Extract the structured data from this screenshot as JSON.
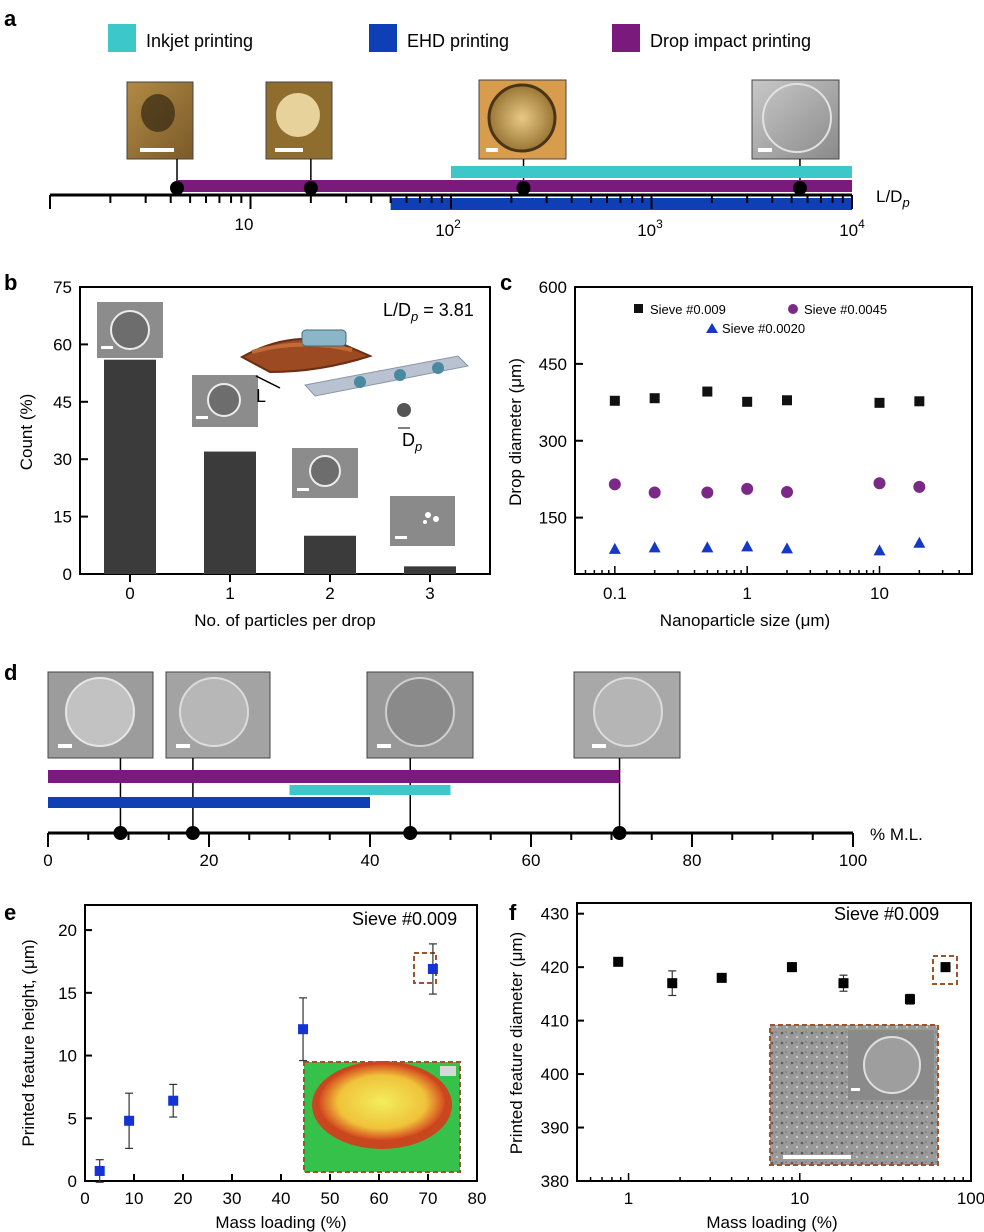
{
  "colors": {
    "inkjet": "#3cc8c8",
    "ehd": "#0f3fb4",
    "drop_impact": "#7a1a7d",
    "bar": "#3b3b3b",
    "sieve_0009": "#111111",
    "sieve_00045": "#7a2a86",
    "sieve_00020": "#1538c8",
    "panel_e_marker": "#1433d6",
    "dashed_box": "#a0522d"
  },
  "panels": {
    "a": {
      "label": "a"
    },
    "b": {
      "label": "b"
    },
    "c": {
      "label": "c"
    },
    "d": {
      "label": "d"
    },
    "e": {
      "label": "e"
    },
    "f": {
      "label": "f"
    }
  },
  "chart_data": [
    {
      "panel": "a",
      "type": "bar",
      "subtype": "range-timeline",
      "scale": "log",
      "xlim": [
        1,
        10000
      ],
      "xlabel": "L/D_p",
      "xlabel_main": "L/D",
      "xlabel_sub": "p",
      "tick_labels": [
        "10",
        "10",
        "10",
        "10"
      ],
      "tick_sup": [
        "",
        "2",
        "3",
        "4"
      ],
      "tick_values": [
        10,
        100,
        1000,
        10000
      ],
      "legend": [
        "Inkjet printing",
        "EHD printing",
        "Drop impact printing"
      ],
      "legend_position": "top",
      "ranges": [
        {
          "name": "Inkjet printing",
          "start": 100,
          "end": 10000
        },
        {
          "name": "Drop impact printing",
          "start": 4.3,
          "end": 10000
        },
        {
          "name": "EHD printing",
          "start": 50,
          "end": 10000
        }
      ],
      "markers": [
        4.3,
        20,
        230,
        5500
      ]
    },
    {
      "panel": "b",
      "type": "bar",
      "categories": [
        "0",
        "1",
        "2",
        "3"
      ],
      "values": [
        56,
        32,
        10,
        2
      ],
      "xlabel": "No. of particles per drop",
      "ylabel": "Count (%)",
      "ylim": [
        0,
        75
      ],
      "yticks": [
        "0",
        "15",
        "30",
        "45",
        "60",
        "75"
      ],
      "annotation": {
        "main": "L/D",
        "sub": "p",
        "rest": " = 3.81"
      },
      "inset_labels": {
        "L": "L",
        "D": "D",
        "p": "p"
      }
    },
    {
      "panel": "c",
      "type": "scatter",
      "scale_x": "log",
      "xlim": [
        0.05,
        50
      ],
      "ylim": [
        40,
        600
      ],
      "xlabel": "Nanoparticle size (μm)",
      "ylabel": "Drop diameter (μm)",
      "xticks": [
        "0.1",
        "1",
        "10"
      ],
      "yticks": [
        "150",
        "300",
        "450",
        "600"
      ],
      "legend_position": "top",
      "series": [
        {
          "name": "Sieve #0.009",
          "x": [
            0.1,
            0.2,
            0.5,
            1,
            2,
            10,
            20
          ],
          "y": [
            378,
            383,
            396,
            376,
            379,
            374,
            377
          ]
        },
        {
          "name": "Sieve #0.0045",
          "x": [
            0.1,
            0.2,
            0.5,
            1,
            2,
            10,
            20
          ],
          "y": [
            215,
            199,
            199,
            206,
            200,
            217,
            210
          ]
        },
        {
          "name": "Sieve #0.0020",
          "x": [
            0.1,
            0.2,
            0.5,
            1,
            2,
            10,
            20
          ],
          "y": [
            89,
            92,
            92,
            94,
            90,
            86,
            101
          ]
        }
      ]
    },
    {
      "panel": "d",
      "type": "bar",
      "subtype": "range-timeline",
      "xlim": [
        0,
        100
      ],
      "xlabel": "% M.L.",
      "xticks": [
        "0",
        "20",
        "40",
        "60",
        "80",
        "100"
      ],
      "ranges": [
        {
          "name": "Drop impact printing",
          "start": 0,
          "end": 71
        },
        {
          "name": "Inkjet printing",
          "start": 30,
          "end": 50
        },
        {
          "name": "EHD printing",
          "start": 0,
          "end": 40
        }
      ],
      "markers": [
        9,
        18,
        45,
        71
      ]
    },
    {
      "panel": "e",
      "type": "scatter",
      "xlim": [
        0,
        80
      ],
      "ylim": [
        0,
        22
      ],
      "xlabel": "Mass loading (%)",
      "ylabel": "Printed feature height, (μm)",
      "xticks": [
        "0",
        "10",
        "20",
        "30",
        "40",
        "50",
        "60",
        "70",
        "80"
      ],
      "yticks": [
        "0",
        "5",
        "10",
        "15",
        "20"
      ],
      "annotation": "Sieve #0.009",
      "x": [
        3,
        9,
        18,
        44.5,
        71
      ],
      "y": [
        0.8,
        4.8,
        6.4,
        12.1,
        16.9
      ],
      "error": [
        0.9,
        2.2,
        1.3,
        2.5,
        2.0
      ]
    },
    {
      "panel": "f",
      "type": "scatter",
      "scale_x": "log",
      "xlim": [
        0.5,
        100
      ],
      "ylim": [
        380,
        432
      ],
      "xlabel": "Mass loading (%)",
      "ylabel": "Printed feature diameter (μm)",
      "xticks": [
        "1",
        "10",
        "100"
      ],
      "yticks": [
        "380",
        "390",
        "400",
        "410",
        "420",
        "430"
      ],
      "annotation": "Sieve #0.009",
      "x": [
        0.87,
        1.8,
        3.5,
        9,
        18,
        44,
        71
      ],
      "y": [
        421,
        417,
        418,
        420,
        417,
        414,
        420
      ],
      "error": [
        0.7,
        2.3,
        0.7,
        0.8,
        1.5,
        0.9,
        0.8
      ]
    }
  ]
}
